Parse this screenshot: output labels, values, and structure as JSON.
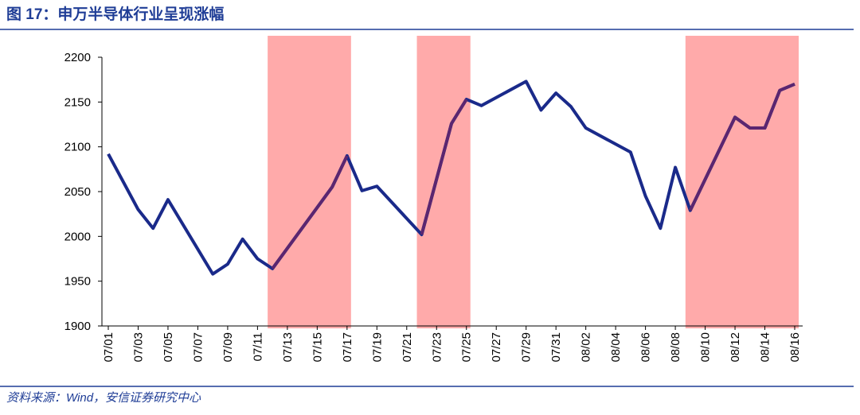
{
  "chart_data": {
    "type": "line",
    "title": "图 17：申万半导体行业呈现涨幅",
    "source": "资料来源：Wind，安信证券研究中心",
    "x": [
      "07/01",
      "07/03",
      "07/04",
      "07/05",
      "07/08",
      "07/09",
      "07/10",
      "07/11",
      "07/12",
      "07/16",
      "07/17",
      "07/18",
      "07/19",
      "07/22",
      "07/24",
      "07/25",
      "07/26",
      "07/29",
      "07/30",
      "07/31",
      "08/01",
      "08/02",
      "08/05",
      "08/06",
      "08/07",
      "08/08",
      "08/09",
      "08/12",
      "08/13",
      "08/14",
      "08/15",
      "08/16"
    ],
    "series": [
      {
        "color": "#1a2a8a",
        "values": [
          2092,
          2030,
          2009,
          2041,
          1958,
          1969,
          1997,
          1975,
          1964,
          2055,
          2090,
          2051,
          2056,
          2002,
          2126,
          2153,
          2146,
          2173,
          2141,
          2160,
          2145,
          2121,
          2094,
          2045,
          2009,
          2077,
          2029,
          2133,
          2121,
          2121,
          2163,
          2170
        ]
      }
    ],
    "highlights": [
      [
        "07/12",
        "07/17"
      ],
      [
        "07/22",
        "07/25"
      ],
      [
        "08/09",
        "08/16"
      ]
    ],
    "highlight_color": "#ffaaaa",
    "highlight_line_color": "#5b2670",
    "xticks": [
      "07/01",
      "07/03",
      "07/05",
      "07/07",
      "07/09",
      "07/11",
      "07/13",
      "07/15",
      "07/17",
      "07/19",
      "07/21",
      "07/23",
      "07/25",
      "07/27",
      "07/29",
      "07/31",
      "08/02",
      "08/04",
      "08/06",
      "08/08",
      "08/10",
      "08/12",
      "08/14",
      "08/16"
    ],
    "ylim": [
      1900,
      2200
    ],
    "yticks": [
      1900,
      1950,
      2000,
      2050,
      2100,
      2150,
      2200
    ]
  }
}
